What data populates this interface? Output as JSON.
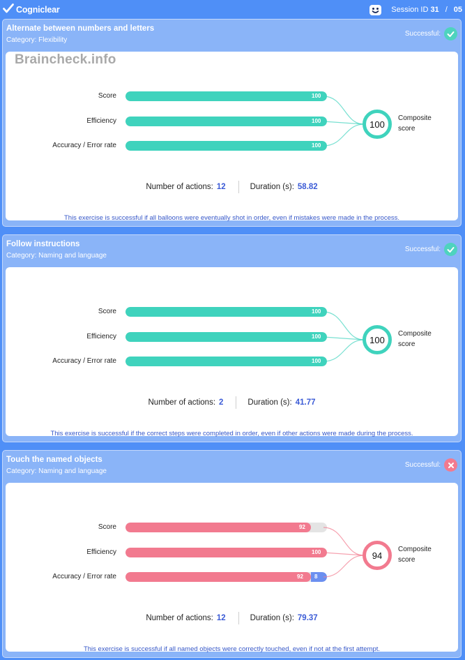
{
  "app": {
    "brand": "Cogniclear",
    "session_label": "Session ID",
    "session_id": "31",
    "session_total": "05",
    "brand_icon": "check-mark-logo-icon",
    "avatar_icon": "face-icon"
  },
  "watermark": "Braincheck.info",
  "colors": {
    "success": "#3fd3bd",
    "fail": "#f27a8f",
    "error": "#6b8ff0",
    "accent_text": "#3b5bd6"
  },
  "exercises": [
    {
      "title": "Alternate between numbers and letters",
      "category": "Category: Flexibility",
      "status_label": "Successful:",
      "status": "success",
      "metrics": [
        {
          "label": "Score",
          "value": 100,
          "value_text": "100"
        },
        {
          "label": "Efficiency",
          "value": 100,
          "value_text": "100"
        },
        {
          "label": "Accuracy / Error rate",
          "value": 100,
          "value_text": "100"
        }
      ],
      "composite": "100",
      "composite_label": "Composite score",
      "actions_label": "Number of actions:",
      "actions": "12",
      "duration_label": "Duration (s):",
      "duration": "58.82",
      "note": "This exercise is successful if all balloons were eventually shot in order, even if mistakes were made in the process."
    },
    {
      "title": "Follow instructions",
      "category": "Category: Naming and language",
      "status_label": "Successful:",
      "status": "success",
      "metrics": [
        {
          "label": "Score",
          "value": 100,
          "value_text": "100"
        },
        {
          "label": "Efficiency",
          "value": 100,
          "value_text": "100"
        },
        {
          "label": "Accuracy / Error rate",
          "value": 100,
          "value_text": "100"
        }
      ],
      "composite": "100",
      "composite_label": "Composite score",
      "actions_label": "Number of actions:",
      "actions": "2",
      "duration_label": "Duration (s):",
      "duration": "41.77",
      "note": "This exercise is successful if the correct steps were completed in order, even if other actions were made during the process."
    },
    {
      "title": "Touch the named objects",
      "category": "Category: Naming and language",
      "status_label": "Successful:",
      "status": "fail",
      "metrics": [
        {
          "label": "Score",
          "value": 92,
          "value_text": "92"
        },
        {
          "label": "Efficiency",
          "value": 100,
          "value_text": "100"
        },
        {
          "label": "Accuracy / Error rate",
          "value": 92,
          "value_text": "92",
          "error": 8,
          "error_text": "8"
        }
      ],
      "composite": "94",
      "composite_label": "Composite score",
      "actions_label": "Number of actions:",
      "actions": "12",
      "duration_label": "Duration (s):",
      "duration": "79.37",
      "note": "This exercise is successful if all named objects were correctly touched, even if not at the first attempt."
    }
  ]
}
